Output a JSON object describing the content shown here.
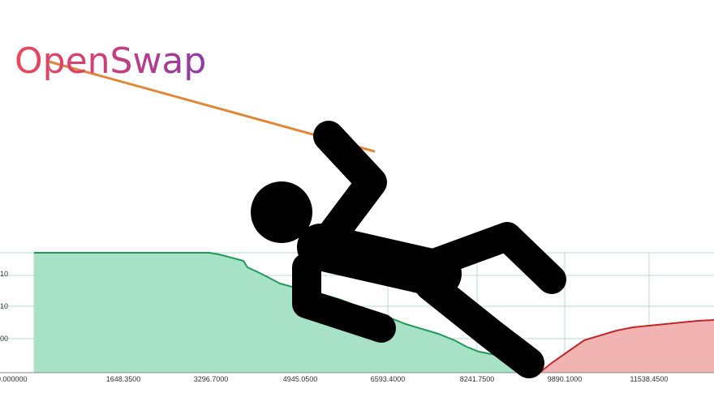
{
  "logo": {
    "text": "OpenSwap"
  },
  "depth_chart": {
    "y_tick_labels": [
      "10",
      "10",
      "00"
    ],
    "x_tick_labels": [
      "0.000000",
      "1648.3500",
      "3296.7000",
      "4945.0500",
      "6593.4000",
      "8241.7500",
      "9890.1000",
      "11538.4500"
    ]
  }
}
